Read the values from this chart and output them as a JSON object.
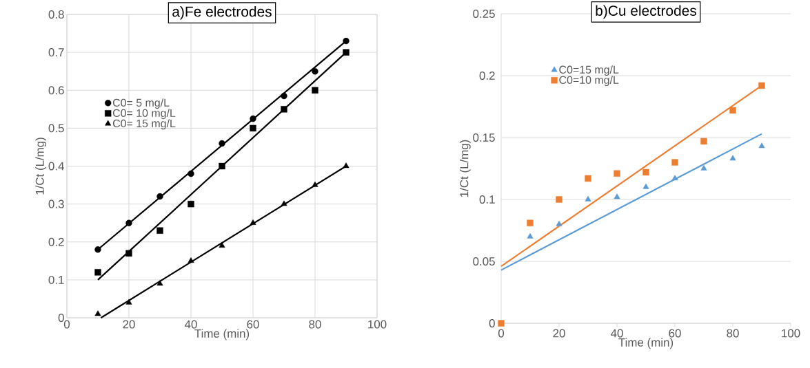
{
  "chart_data": [
    {
      "type": "scatter",
      "title": "a)Fe electrodes",
      "xlabel": "Time (min)",
      "ylabel": "1/Ct (L/mg)",
      "xlim": [
        0,
        100
      ],
      "ylim": [
        0,
        0.8
      ],
      "xticks": [
        0,
        20,
        40,
        60,
        80,
        100
      ],
      "yticks": [
        0,
        0.1,
        0.2,
        0.3,
        0.4,
        0.5,
        0.6,
        0.7,
        0.8
      ],
      "grid": true,
      "legend": "left",
      "series": [
        {
          "name": "C0= 5 mg/L",
          "color": "#000000",
          "marker": "circle",
          "x": [
            10,
            20,
            30,
            40,
            50,
            60,
            70,
            80,
            90
          ],
          "values": [
            0.18,
            0.25,
            0.32,
            0.38,
            0.46,
            0.525,
            0.585,
            0.65,
            0.73
          ]
        },
        {
          "name": "C0= 10 mg/L",
          "color": "#000000",
          "marker": "square",
          "x": [
            10,
            20,
            30,
            40,
            50,
            60,
            70,
            80,
            90
          ],
          "values": [
            0.12,
            0.17,
            0.23,
            0.3,
            0.4,
            0.5,
            0.55,
            0.6,
            0.7
          ]
        },
        {
          "name": "C0= 15 mg/L",
          "color": "#000000",
          "marker": "triangle",
          "x": [
            10,
            20,
            30,
            40,
            50,
            60,
            70,
            80,
            90
          ],
          "values": [
            0.01,
            0.04,
            0.09,
            0.15,
            0.19,
            0.25,
            0.3,
            0.35,
            0.4
          ]
        },
        {
          "type": "line",
          "color": "#000000",
          "x": [
            10,
            90
          ],
          "values": [
            0.18,
            0.73
          ]
        },
        {
          "type": "line",
          "color": "#000000",
          "x": [
            10,
            90
          ],
          "values": [
            0.1,
            0.7
          ]
        },
        {
          "type": "line",
          "color": "#000000",
          "x": [
            11,
            90
          ],
          "values": [
            0,
            0.4
          ]
        }
      ]
    },
    {
      "type": "scatter",
      "title": "b)Cu electrodes",
      "xlabel": "Time (min)",
      "ylabel": "1/Ct (L/mg)",
      "xlim": [
        0,
        100
      ],
      "ylim": [
        0,
        0.25
      ],
      "xticks": [
        0,
        20,
        40,
        60,
        80,
        100
      ],
      "yticks": [
        0,
        0.05,
        0.1,
        0.15,
        0.2,
        0.25
      ],
      "grid": "y",
      "legend": "top",
      "series": [
        {
          "name": "C0=15 mg/L",
          "color": "#5b9bd5",
          "marker": "triangle",
          "x": [
            10,
            20,
            30,
            40,
            50,
            60,
            70,
            80,
            90
          ],
          "values": [
            0.07,
            0.08,
            0.1,
            0.102,
            0.11,
            0.117,
            0.125,
            0.133,
            0.143
          ]
        },
        {
          "name": "C0=10 mg/L",
          "color": "#ed7d31",
          "marker": "square",
          "x": [
            0,
            10,
            20,
            30,
            40,
            50,
            60,
            70,
            80,
            90
          ],
          "values": [
            0,
            0.081,
            0.1,
            0.117,
            0.121,
            0.122,
            0.13,
            0.147,
            0.172,
            0.192
          ]
        },
        {
          "type": "line",
          "color": "#5b9bd5",
          "x": [
            0,
            90
          ],
          "values": [
            0.043,
            0.153
          ]
        },
        {
          "type": "line",
          "color": "#ed7d31",
          "x": [
            0,
            90
          ],
          "values": [
            0.046,
            0.192
          ]
        }
      ]
    }
  ]
}
